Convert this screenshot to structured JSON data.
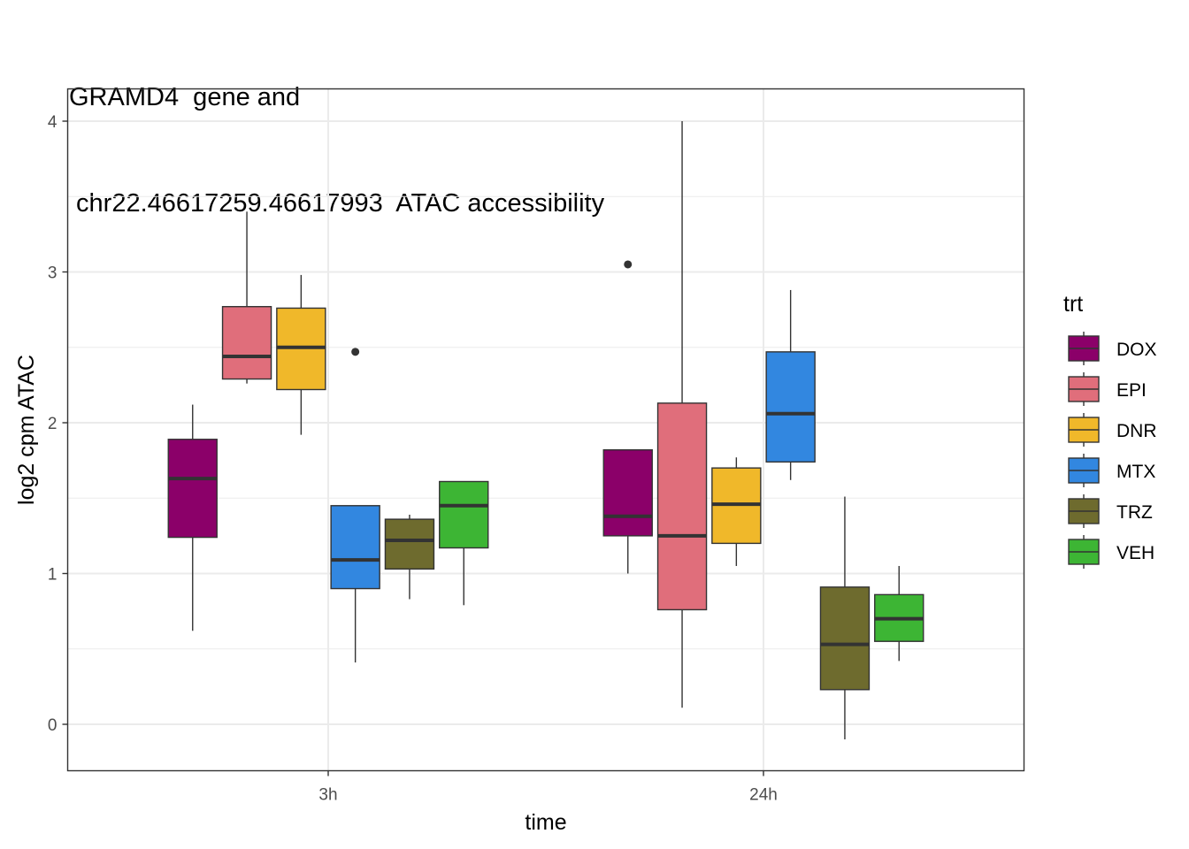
{
  "chart_data": {
    "type": "boxplot",
    "title_lines": [
      "GRAMD4  gene and",
      " chr22.46617259.46617993  ATAC accessibility"
    ],
    "xlabel": "time",
    "ylabel": "log2 cpm ATAC",
    "ylim": [
      -0.3,
      4.2
    ],
    "y_ticks": [
      0,
      1,
      2,
      3,
      4
    ],
    "y_tick_labels": [
      "0",
      "1",
      "2",
      "3",
      "4"
    ],
    "categories": [
      "3h",
      "24h"
    ],
    "legend_title": "trt",
    "legend_position": "right",
    "grid": true,
    "series": [
      {
        "name": "DOX",
        "color": "#8b0069",
        "boxes": [
          {
            "category": "3h",
            "min": 0.62,
            "q1": 1.24,
            "median": 1.63,
            "q3": 1.89,
            "max": 2.12,
            "outliers": []
          },
          {
            "category": "24h",
            "min": 1.0,
            "q1": 1.25,
            "median": 1.38,
            "q3": 1.82,
            "max": 1.82,
            "outliers": [
              3.05
            ]
          }
        ]
      },
      {
        "name": "EPI",
        "color": "#e06e7b",
        "boxes": [
          {
            "category": "3h",
            "min": 2.26,
            "q1": 2.29,
            "median": 2.44,
            "q3": 2.77,
            "max": 3.4,
            "outliers": []
          },
          {
            "category": "24h",
            "min": 0.11,
            "q1": 0.76,
            "median": 1.25,
            "q3": 2.13,
            "max": 4.0,
            "outliers": []
          }
        ]
      },
      {
        "name": "DNR",
        "color": "#f0b82a",
        "boxes": [
          {
            "category": "3h",
            "min": 1.92,
            "q1": 2.22,
            "median": 2.5,
            "q3": 2.76,
            "max": 2.98,
            "outliers": []
          },
          {
            "category": "24h",
            "min": 1.05,
            "q1": 1.2,
            "median": 1.46,
            "q3": 1.7,
            "max": 1.77,
            "outliers": []
          }
        ]
      },
      {
        "name": "MTX",
        "color": "#3287e0",
        "boxes": [
          {
            "category": "3h",
            "min": 0.41,
            "q1": 0.9,
            "median": 1.09,
            "q3": 1.45,
            "max": 1.45,
            "outliers": [
              2.47
            ]
          },
          {
            "category": "24h",
            "min": 1.62,
            "q1": 1.74,
            "median": 2.06,
            "q3": 2.47,
            "max": 2.88,
            "outliers": []
          }
        ]
      },
      {
        "name": "TRZ",
        "color": "#6e6b2e",
        "boxes": [
          {
            "category": "3h",
            "min": 0.83,
            "q1": 1.03,
            "median": 1.22,
            "q3": 1.36,
            "max": 1.39,
            "outliers": []
          },
          {
            "category": "24h",
            "min": -0.1,
            "q1": 0.23,
            "median": 0.53,
            "q3": 0.91,
            "max": 1.51,
            "outliers": []
          }
        ]
      },
      {
        "name": "VEH",
        "color": "#3db534",
        "boxes": [
          {
            "category": "3h",
            "min": 0.79,
            "q1": 1.17,
            "median": 1.45,
            "q3": 1.61,
            "max": 1.61,
            "outliers": []
          },
          {
            "category": "24h",
            "min": 0.42,
            "q1": 0.55,
            "median": 0.7,
            "q3": 0.86,
            "max": 1.05,
            "outliers": []
          }
        ]
      }
    ]
  }
}
